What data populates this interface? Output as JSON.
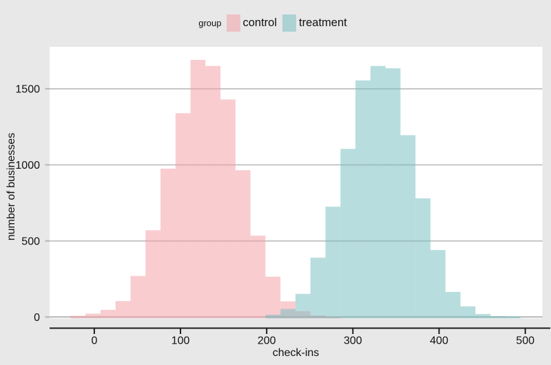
{
  "window": {
    "background": "#e8e8e8",
    "panel_background": "#ffffff"
  },
  "style": {
    "gridline_color": "#c6c6c6",
    "baseline_color": "#b5b5b5",
    "axis_line_color": "#1c1c1c",
    "text_color": "#111111"
  },
  "chart_data": {
    "type": "histogram",
    "legend_title": "group",
    "legend_position": "top-center",
    "xlabel": "check-ins",
    "ylabel": "number of businesses",
    "x_ticks": [
      0,
      100,
      200,
      300,
      400,
      500
    ],
    "y_ticks": [
      0,
      500,
      1000,
      1500
    ],
    "xlim": [
      -52,
      519
    ],
    "ylim": [
      0,
      1780
    ],
    "grid": "horizontal-major-only",
    "bin_width": 17.4,
    "series": [
      {
        "name": "control",
        "color": "#F39CA2",
        "alpha": 0.5,
        "bin_start": -27.6,
        "counts": [
          8,
          22,
          47,
          105,
          270,
          570,
          975,
          1340,
          1690,
          1650,
          1430,
          965,
          535,
          265,
          103,
          38,
          10,
          4
        ]
      },
      {
        "name": "treatment",
        "color": "#72BCBE",
        "alpha": 0.5,
        "bin_start": 198.6,
        "counts": [
          15,
          53,
          152,
          390,
          725,
          1105,
          1555,
          1650,
          1635,
          1195,
          780,
          440,
          165,
          70,
          20,
          6,
          3
        ]
      }
    ]
  }
}
